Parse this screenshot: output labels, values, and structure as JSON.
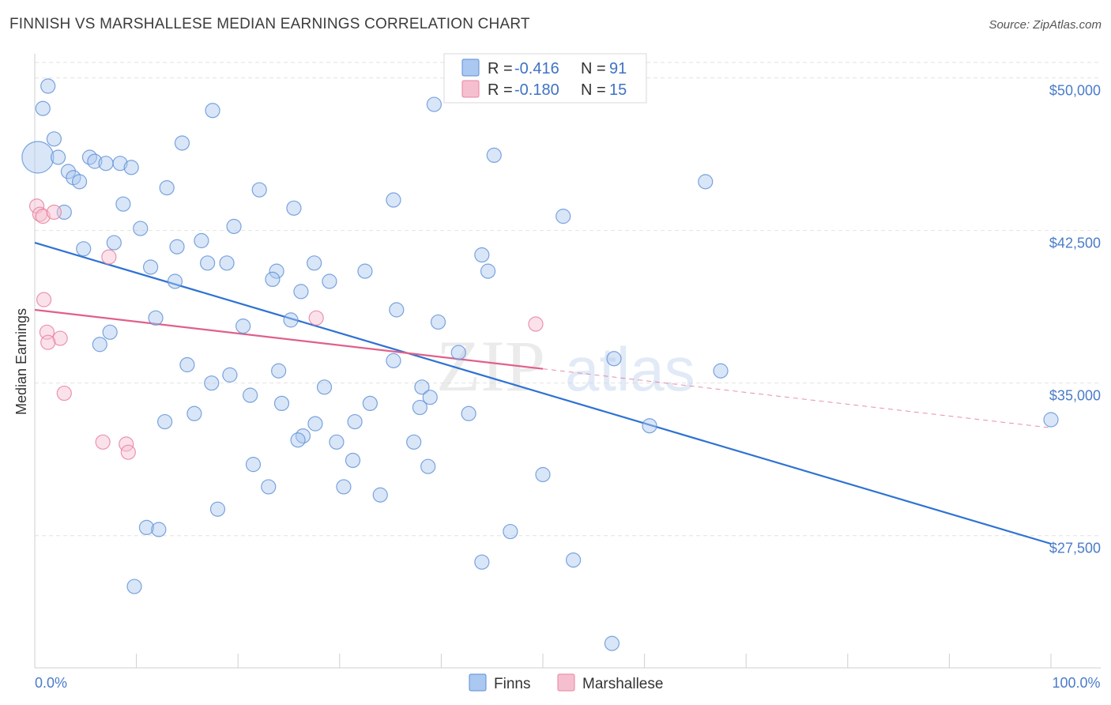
{
  "header": {
    "title": "FINNISH VS MARSHALLESE MEDIAN EARNINGS CORRELATION CHART",
    "source": "Source: ZipAtlas.com"
  },
  "watermark": {
    "part1": "ZIP",
    "part2": "atlas"
  },
  "colors": {
    "finns_fill": "#aac8f0",
    "finns_stroke": "#5b8fd6",
    "finns_line": "#2e72d2",
    "marsh_fill": "#f6bfd0",
    "marsh_stroke": "#e8839f",
    "marsh_line": "#e0608a",
    "grid": "#e2e2e2",
    "tick_label": "#4a7cc9"
  },
  "legend": {
    "rows": [
      {
        "r_label": "R = ",
        "r_value": "-0.416",
        "n_label": "N = ",
        "n_value": "91"
      },
      {
        "r_label": "R = ",
        "r_value": "-0.180",
        "n_label": "N = ",
        "n_value": "15"
      }
    ]
  },
  "bottom_legend": {
    "items": [
      "Finns",
      "Marshallese"
    ]
  },
  "chart_data": {
    "type": "scatter",
    "title": "FINNISH VS MARSHALLESE MEDIAN EARNINGS CORRELATION CHART",
    "xlabel": "",
    "ylabel": "Median Earnings",
    "xlim": [
      0,
      100
    ],
    "ylim": [
      21000,
      51500
    ],
    "x_tick_labels": [
      {
        "value": 0,
        "label": "0.0%"
      },
      {
        "value": 100,
        "label": "100.0%"
      }
    ],
    "y_ticks": [
      {
        "value": 27500,
        "label": "$27,500"
      },
      {
        "value": 35000,
        "label": "$35,000"
      },
      {
        "value": 42500,
        "label": "$42,500"
      },
      {
        "value": 50000,
        "label": "$50,000"
      }
    ],
    "grid": true,
    "legend_position": "top-center",
    "series": [
      {
        "name": "Finns",
        "r": -0.416,
        "n": 91,
        "trend": {
          "x0": 0,
          "y0": 41900,
          "x1": 100,
          "y1": 27100
        },
        "points": [
          {
            "x": 0.3,
            "y": 46100,
            "big": true
          },
          {
            "x": 1.3,
            "y": 49600
          },
          {
            "x": 0.8,
            "y": 48500
          },
          {
            "x": 1.9,
            "y": 47000
          },
          {
            "x": 2.3,
            "y": 46100
          },
          {
            "x": 3.3,
            "y": 45400
          },
          {
            "x": 3.8,
            "y": 45100
          },
          {
            "x": 4.4,
            "y": 44900
          },
          {
            "x": 5.4,
            "y": 46100
          },
          {
            "x": 5.9,
            "y": 45900
          },
          {
            "x": 7.0,
            "y": 45800
          },
          {
            "x": 8.4,
            "y": 45800
          },
          {
            "x": 9.5,
            "y": 45600
          },
          {
            "x": 2.9,
            "y": 43400
          },
          {
            "x": 8.7,
            "y": 43800
          },
          {
            "x": 10.4,
            "y": 42600
          },
          {
            "x": 7.8,
            "y": 41900
          },
          {
            "x": 4.8,
            "y": 41600
          },
          {
            "x": 11.4,
            "y": 40700
          },
          {
            "x": 13.0,
            "y": 44600
          },
          {
            "x": 14.5,
            "y": 46800
          },
          {
            "x": 17.5,
            "y": 48400
          },
          {
            "x": 14.0,
            "y": 41700
          },
          {
            "x": 16.4,
            "y": 42000
          },
          {
            "x": 17.0,
            "y": 40900
          },
          {
            "x": 18.9,
            "y": 40900
          },
          {
            "x": 19.6,
            "y": 42700
          },
          {
            "x": 22.1,
            "y": 44500
          },
          {
            "x": 25.5,
            "y": 43600
          },
          {
            "x": 23.8,
            "y": 40500
          },
          {
            "x": 23.4,
            "y": 40100
          },
          {
            "x": 13.8,
            "y": 40000
          },
          {
            "x": 11.9,
            "y": 38200
          },
          {
            "x": 7.4,
            "y": 37500
          },
          {
            "x": 6.4,
            "y": 36900
          },
          {
            "x": 15.0,
            "y": 35900
          },
          {
            "x": 17.4,
            "y": 35000
          },
          {
            "x": 19.2,
            "y": 35400
          },
          {
            "x": 20.5,
            "y": 37800
          },
          {
            "x": 25.2,
            "y": 38100
          },
          {
            "x": 26.2,
            "y": 39500
          },
          {
            "x": 27.5,
            "y": 40900
          },
          {
            "x": 29.0,
            "y": 40000
          },
          {
            "x": 32.5,
            "y": 40500
          },
          {
            "x": 35.3,
            "y": 44000
          },
          {
            "x": 39.3,
            "y": 48700
          },
          {
            "x": 45.2,
            "y": 46200
          },
          {
            "x": 44.0,
            "y": 41300
          },
          {
            "x": 44.6,
            "y": 40500
          },
          {
            "x": 35.6,
            "y": 38600
          },
          {
            "x": 39.7,
            "y": 38000
          },
          {
            "x": 35.3,
            "y": 36100
          },
          {
            "x": 41.7,
            "y": 36500
          },
          {
            "x": 24.0,
            "y": 35600
          },
          {
            "x": 28.5,
            "y": 34800
          },
          {
            "x": 21.2,
            "y": 34400
          },
          {
            "x": 24.3,
            "y": 34000
          },
          {
            "x": 33.0,
            "y": 34000
          },
          {
            "x": 38.1,
            "y": 34800
          },
          {
            "x": 38.9,
            "y": 34300
          },
          {
            "x": 37.9,
            "y": 33800
          },
          {
            "x": 42.7,
            "y": 33500
          },
          {
            "x": 15.7,
            "y": 33500
          },
          {
            "x": 12.8,
            "y": 33100
          },
          {
            "x": 27.6,
            "y": 33000
          },
          {
            "x": 31.5,
            "y": 33100
          },
          {
            "x": 26.4,
            "y": 32400
          },
          {
            "x": 25.9,
            "y": 32200
          },
          {
            "x": 29.7,
            "y": 32100
          },
          {
            "x": 37.3,
            "y": 32100
          },
          {
            "x": 31.3,
            "y": 31200
          },
          {
            "x": 21.5,
            "y": 31000
          },
          {
            "x": 38.7,
            "y": 30900
          },
          {
            "x": 50.0,
            "y": 30500
          },
          {
            "x": 23.0,
            "y": 29900
          },
          {
            "x": 30.4,
            "y": 29900
          },
          {
            "x": 34.0,
            "y": 29500
          },
          {
            "x": 18.0,
            "y": 28800
          },
          {
            "x": 11.0,
            "y": 27900
          },
          {
            "x": 12.2,
            "y": 27800
          },
          {
            "x": 46.8,
            "y": 27700
          },
          {
            "x": 44.0,
            "y": 26200
          },
          {
            "x": 53.0,
            "y": 26300
          },
          {
            "x": 9.8,
            "y": 25000
          },
          {
            "x": 52.0,
            "y": 43200
          },
          {
            "x": 66.0,
            "y": 44900
          },
          {
            "x": 57.0,
            "y": 36200
          },
          {
            "x": 67.5,
            "y": 35600
          },
          {
            "x": 60.5,
            "y": 32900
          },
          {
            "x": 100.0,
            "y": 33200
          },
          {
            "x": 56.8,
            "y": 22200
          }
        ]
      },
      {
        "name": "Marshallese",
        "r": -0.18,
        "n": 15,
        "trend": {
          "x0": 0,
          "y0": 38600,
          "x1": 50,
          "y1": 35700
        },
        "trend_extension": {
          "x0": 50,
          "y0": 35700,
          "x1": 100,
          "y1": 32800
        },
        "points": [
          {
            "x": 0.2,
            "y": 43700
          },
          {
            "x": 0.5,
            "y": 43300
          },
          {
            "x": 0.8,
            "y": 43200
          },
          {
            "x": 1.9,
            "y": 43400
          },
          {
            "x": 7.3,
            "y": 41200
          },
          {
            "x": 0.9,
            "y": 39100
          },
          {
            "x": 1.2,
            "y": 37500
          },
          {
            "x": 2.5,
            "y": 37200
          },
          {
            "x": 1.3,
            "y": 37000
          },
          {
            "x": 2.9,
            "y": 34500
          },
          {
            "x": 6.7,
            "y": 32100
          },
          {
            "x": 9.0,
            "y": 32000
          },
          {
            "x": 9.2,
            "y": 31600
          },
          {
            "x": 27.7,
            "y": 38200
          },
          {
            "x": 49.3,
            "y": 37900
          }
        ]
      }
    ]
  }
}
